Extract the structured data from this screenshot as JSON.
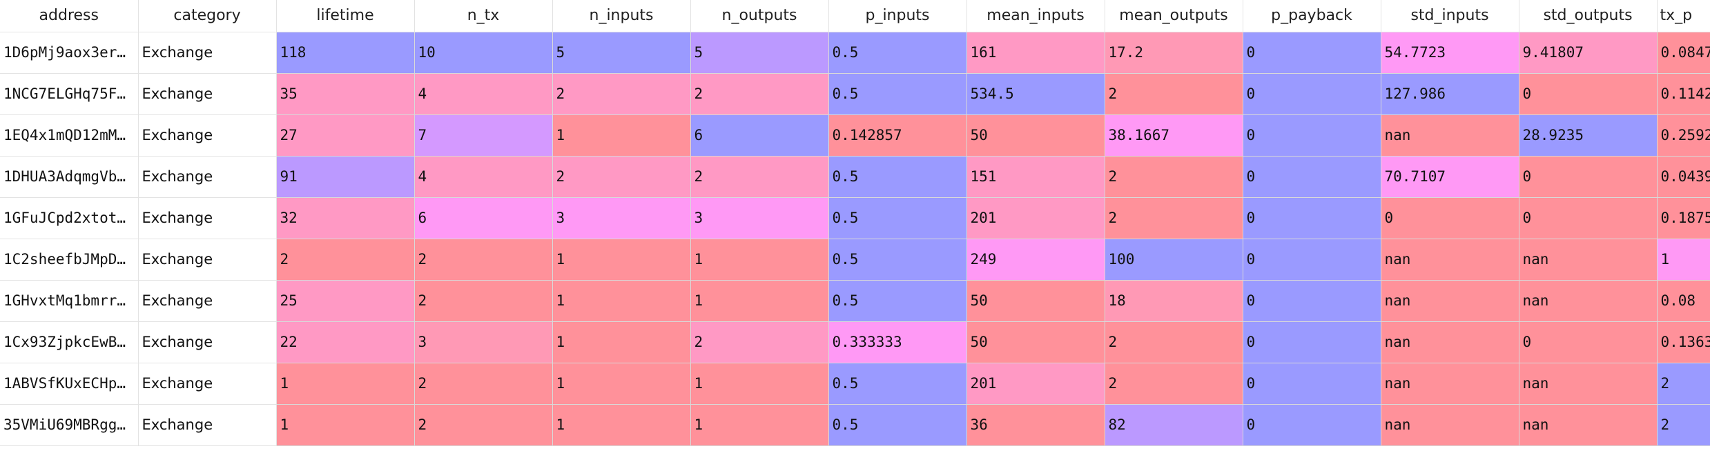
{
  "table": {
    "columns": [
      "address",
      "category",
      "lifetime",
      "n_tx",
      "n_inputs",
      "n_outputs",
      "p_inputs",
      "mean_inputs",
      "mean_outputs",
      "p_payback",
      "std_inputs",
      "std_outputs",
      "tx_p"
    ],
    "rows": [
      [
        "1D6pMj9aox3er…",
        "Exchange",
        "118",
        "10",
        "5",
        "5",
        "0.5",
        "161",
        "17.2",
        "0",
        "54.7723",
        "9.41807",
        "0.0847"
      ],
      [
        "1NCG7ELGHq75F…",
        "Exchange",
        "35",
        "4",
        "2",
        "2",
        "0.5",
        "534.5",
        "2",
        "0",
        "127.986",
        "0",
        "0.1142"
      ],
      [
        "1EQ4x1mQD12mM…",
        "Exchange",
        "27",
        "7",
        "1",
        "6",
        "0.142857",
        "50",
        "38.1667",
        "0",
        "nan",
        "28.9235",
        "0.2592"
      ],
      [
        "1DHUA3AdqmgVb…",
        "Exchange",
        "91",
        "4",
        "2",
        "2",
        "0.5",
        "151",
        "2",
        "0",
        "70.7107",
        "0",
        "0.0439"
      ],
      [
        "1GFuJCpd2xtot…",
        "Exchange",
        "32",
        "6",
        "3",
        "3",
        "0.5",
        "201",
        "2",
        "0",
        "0",
        "0",
        "0.1875"
      ],
      [
        "1C2sheefbJMpD…",
        "Exchange",
        "2",
        "2",
        "1",
        "1",
        "0.5",
        "249",
        "100",
        "0",
        "nan",
        "nan",
        "1"
      ],
      [
        "1GHvxtMq1bmrr…",
        "Exchange",
        "25",
        "2",
        "1",
        "1",
        "0.5",
        "50",
        "18",
        "0",
        "nan",
        "nan",
        "0.08"
      ],
      [
        "1Cx93ZjpkcEwB…",
        "Exchange",
        "22",
        "3",
        "1",
        "2",
        "0.333333",
        "50",
        "2",
        "0",
        "nan",
        "0",
        "0.1363"
      ],
      [
        "1ABVSfKUxECHp…",
        "Exchange",
        "1",
        "2",
        "1",
        "1",
        "0.5",
        "201",
        "2",
        "0",
        "nan",
        "nan",
        "2"
      ],
      [
        "35VMiU69MBRgg…",
        "Exchange",
        "1",
        "2",
        "1",
        "1",
        "0.5",
        "36",
        "82",
        "0",
        "nan",
        "nan",
        "2"
      ]
    ],
    "cell_colors": [
      [
        "#ffffff",
        "#ffffff",
        "#9a9aff",
        "#9a9aff",
        "#9a9aff",
        "#bb99ff",
        "#9a9aff",
        "#ff99c4",
        "#ff99b5",
        "#9a9aff",
        "#ff99f5",
        "#ff99c4",
        "#ff919a"
      ],
      [
        "#ffffff",
        "#ffffff",
        "#ff99c4",
        "#ff99c4",
        "#ff99c4",
        "#ff99c4",
        "#9a9aff",
        "#9a9aff",
        "#ff919a",
        "#9a9aff",
        "#9a9aff",
        "#ff919a",
        "#ff919a"
      ],
      [
        "#ffffff",
        "#ffffff",
        "#ff99c4",
        "#d499ff",
        "#ff919a",
        "#9a9aff",
        "#ff919a",
        "#ff919a",
        "#ff99f5",
        "#9a9aff",
        "#ff919a",
        "#9a9aff",
        "#ff919a"
      ],
      [
        "#ffffff",
        "#ffffff",
        "#bb99ff",
        "#ff99c4",
        "#ff99c4",
        "#ff99c4",
        "#9a9aff",
        "#ff99c4",
        "#ff919a",
        "#9a9aff",
        "#ff99f5",
        "#ff919a",
        "#ff919a"
      ],
      [
        "#ffffff",
        "#ffffff",
        "#ff99c4",
        "#ff99f5",
        "#ff99f5",
        "#ff99f5",
        "#9a9aff",
        "#ff99c4",
        "#ff919a",
        "#9a9aff",
        "#ff919a",
        "#ff919a",
        "#ff919a"
      ],
      [
        "#ffffff",
        "#ffffff",
        "#ff919a",
        "#ff919a",
        "#ff919a",
        "#ff919a",
        "#9a9aff",
        "#ff99f5",
        "#9a9aff",
        "#9a9aff",
        "#ff919a",
        "#ff919a",
        "#ff99f5"
      ],
      [
        "#ffffff",
        "#ffffff",
        "#ff99c4",
        "#ff919a",
        "#ff919a",
        "#ff919a",
        "#9a9aff",
        "#ff919a",
        "#ff99b5",
        "#9a9aff",
        "#ff919a",
        "#ff919a",
        "#ff919a"
      ],
      [
        "#ffffff",
        "#ffffff",
        "#ff99c4",
        "#ff99b5",
        "#ff919a",
        "#ff99c4",
        "#ff99f5",
        "#ff919a",
        "#ff919a",
        "#9a9aff",
        "#ff919a",
        "#ff919a",
        "#ff919a"
      ],
      [
        "#ffffff",
        "#ffffff",
        "#ff919a",
        "#ff919a",
        "#ff919a",
        "#ff919a",
        "#9a9aff",
        "#ff99c4",
        "#ff919a",
        "#9a9aff",
        "#ff919a",
        "#ff919a",
        "#9a9aff"
      ],
      [
        "#ffffff",
        "#ffffff",
        "#ff919a",
        "#ff919a",
        "#ff919a",
        "#ff919a",
        "#9a9aff",
        "#ff919a",
        "#bb99ff",
        "#9a9aff",
        "#ff919a",
        "#ff919a",
        "#9a9aff"
      ]
    ]
  }
}
